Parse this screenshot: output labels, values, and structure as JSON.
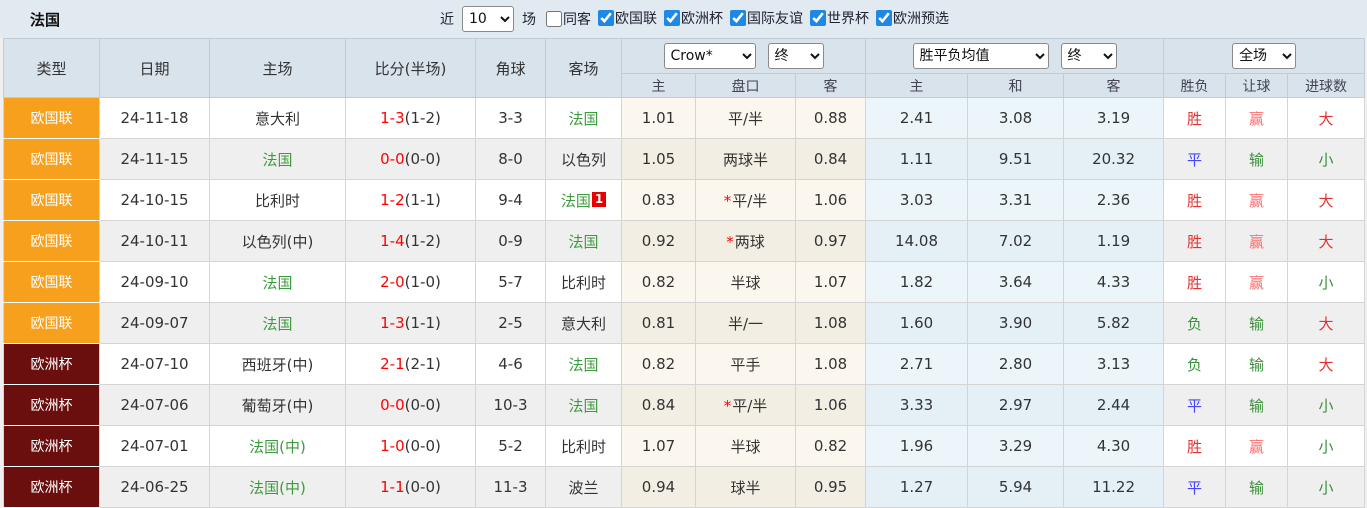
{
  "title": "法国",
  "topbar": {
    "recent_label": "近",
    "recent_value": "10",
    "matches_label": "场",
    "same_venue": {
      "label": "同客",
      "checked": false
    },
    "filters": [
      {
        "label": "欧国联",
        "checked": true
      },
      {
        "label": "欧洲杯",
        "checked": true
      },
      {
        "label": "国际友谊",
        "checked": true
      },
      {
        "label": "世界杯",
        "checked": true
      },
      {
        "label": "欧洲预选",
        "checked": true
      }
    ]
  },
  "table": {
    "static_headers": [
      "类型",
      "日期",
      "主场",
      "比分(半场)",
      "角球",
      "客场"
    ],
    "odds_group": {
      "selects": [
        "Crow*",
        "终"
      ],
      "sub": [
        "主",
        "盘口",
        "客"
      ]
    },
    "avg_group": {
      "selects": [
        "胜平负均值",
        "终"
      ],
      "sub": [
        "主",
        "和",
        "客"
      ]
    },
    "result_group": {
      "select": "全场",
      "sub": [
        "胜负",
        "让球",
        "进球数"
      ]
    },
    "rows": [
      {
        "type": "欧国联",
        "style": "nations",
        "date": "24-11-18",
        "home": {
          "name": "意大利",
          "focus": false
        },
        "score_full": "1-3",
        "score_half": "(1-2)",
        "corners": "3-3",
        "away": {
          "name": "法国",
          "focus": true
        },
        "odds_home": "1.01",
        "handicap": "平/半",
        "handicap_star": false,
        "odds_away": "0.88",
        "avg_home": "2.41",
        "avg_draw": "3.08",
        "avg_away": "3.19",
        "outcome": {
          "text": "胜",
          "color": "red"
        },
        "letgoal": {
          "text": "赢",
          "color": "pink"
        },
        "goals": {
          "text": "大",
          "color": "red"
        }
      },
      {
        "type": "欧国联",
        "style": "nations",
        "date": "24-11-15",
        "home": {
          "name": "法国",
          "focus": true
        },
        "score_full": "0-0",
        "score_half": "(0-0)",
        "corners": "8-0",
        "away": {
          "name": "以色列",
          "focus": false
        },
        "odds_home": "1.05",
        "handicap": "两球半",
        "handicap_star": false,
        "odds_away": "0.84",
        "avg_home": "1.11",
        "avg_draw": "9.51",
        "avg_away": "20.32",
        "outcome": {
          "text": "平",
          "color": "blue"
        },
        "letgoal": {
          "text": "输",
          "color": "green"
        },
        "goals": {
          "text": "小",
          "color": "green"
        }
      },
      {
        "type": "欧国联",
        "style": "nations",
        "date": "24-10-15",
        "home": {
          "name": "比利时",
          "focus": false
        },
        "score_full": "1-2",
        "score_half": "(1-1)",
        "corners": "9-4",
        "away": {
          "name": "法国",
          "focus": true,
          "badge": "1"
        },
        "odds_home": "0.83",
        "handicap": "平/半",
        "handicap_star": true,
        "odds_away": "1.06",
        "avg_home": "3.03",
        "avg_draw": "3.31",
        "avg_away": "2.36",
        "outcome": {
          "text": "胜",
          "color": "red"
        },
        "letgoal": {
          "text": "赢",
          "color": "pink"
        },
        "goals": {
          "text": "大",
          "color": "red"
        }
      },
      {
        "type": "欧国联",
        "style": "nations",
        "date": "24-10-11",
        "home": {
          "name": "以色列(中)",
          "focus": false
        },
        "score_full": "1-4",
        "score_half": "(1-2)",
        "corners": "0-9",
        "away": {
          "name": "法国",
          "focus": true
        },
        "odds_home": "0.92",
        "handicap": "两球",
        "handicap_star": true,
        "odds_away": "0.97",
        "avg_home": "14.08",
        "avg_draw": "7.02",
        "avg_away": "1.19",
        "outcome": {
          "text": "胜",
          "color": "red"
        },
        "letgoal": {
          "text": "赢",
          "color": "pink"
        },
        "goals": {
          "text": "大",
          "color": "red"
        }
      },
      {
        "type": "欧国联",
        "style": "nations",
        "date": "24-09-10",
        "home": {
          "name": "法国",
          "focus": true
        },
        "score_full": "2-0",
        "score_half": "(1-0)",
        "corners": "5-7",
        "away": {
          "name": "比利时",
          "focus": false
        },
        "odds_home": "0.82",
        "handicap": "半球",
        "handicap_star": false,
        "odds_away": "1.07",
        "avg_home": "1.82",
        "avg_draw": "3.64",
        "avg_away": "4.33",
        "outcome": {
          "text": "胜",
          "color": "red"
        },
        "letgoal": {
          "text": "赢",
          "color": "pink"
        },
        "goals": {
          "text": "小",
          "color": "green"
        }
      },
      {
        "type": "欧国联",
        "style": "nations",
        "date": "24-09-07",
        "home": {
          "name": "法国",
          "focus": true
        },
        "score_full": "1-3",
        "score_half": "(1-1)",
        "corners": "2-5",
        "away": {
          "name": "意大利",
          "focus": false
        },
        "odds_home": "0.81",
        "handicap": "半/一",
        "handicap_star": false,
        "odds_away": "1.08",
        "avg_home": "1.60",
        "avg_draw": "3.90",
        "avg_away": "5.82",
        "outcome": {
          "text": "负",
          "color": "green"
        },
        "letgoal": {
          "text": "输",
          "color": "green"
        },
        "goals": {
          "text": "大",
          "color": "red"
        }
      },
      {
        "type": "欧洲杯",
        "style": "euro",
        "date": "24-07-10",
        "home": {
          "name": "西班牙(中)",
          "focus": false
        },
        "score_full": "2-1",
        "score_half": "(2-1)",
        "corners": "4-6",
        "away": {
          "name": "法国",
          "focus": true
        },
        "odds_home": "0.82",
        "handicap": "平手",
        "handicap_star": false,
        "odds_away": "1.08",
        "avg_home": "2.71",
        "avg_draw": "2.80",
        "avg_away": "3.13",
        "outcome": {
          "text": "负",
          "color": "green"
        },
        "letgoal": {
          "text": "输",
          "color": "green"
        },
        "goals": {
          "text": "大",
          "color": "red"
        }
      },
      {
        "type": "欧洲杯",
        "style": "euro",
        "date": "24-07-06",
        "home": {
          "name": "葡萄牙(中)",
          "focus": false
        },
        "score_full": "0-0",
        "score_half": "(0-0)",
        "corners": "10-3",
        "away": {
          "name": "法国",
          "focus": true
        },
        "odds_home": "0.84",
        "handicap": "平/半",
        "handicap_star": true,
        "odds_away": "1.06",
        "avg_home": "3.33",
        "avg_draw": "2.97",
        "avg_away": "2.44",
        "outcome": {
          "text": "平",
          "color": "blue"
        },
        "letgoal": {
          "text": "输",
          "color": "green"
        },
        "goals": {
          "text": "小",
          "color": "green"
        }
      },
      {
        "type": "欧洲杯",
        "style": "euro",
        "date": "24-07-01",
        "home": {
          "name": "法国(中)",
          "focus": true
        },
        "score_full": "1-0",
        "score_half": "(0-0)",
        "corners": "5-2",
        "away": {
          "name": "比利时",
          "focus": false
        },
        "odds_home": "1.07",
        "handicap": "半球",
        "handicap_star": false,
        "odds_away": "0.82",
        "avg_home": "1.96",
        "avg_draw": "3.29",
        "avg_away": "4.30",
        "outcome": {
          "text": "胜",
          "color": "red"
        },
        "letgoal": {
          "text": "赢",
          "color": "pink"
        },
        "goals": {
          "text": "小",
          "color": "green"
        }
      },
      {
        "type": "欧洲杯",
        "style": "euro",
        "date": "24-06-25",
        "home": {
          "name": "法国(中)",
          "focus": true
        },
        "score_full": "1-1",
        "score_half": "(0-0)",
        "corners": "11-3",
        "away": {
          "name": "波兰",
          "focus": false
        },
        "odds_home": "0.94",
        "handicap": "球半",
        "handicap_star": false,
        "odds_away": "0.95",
        "avg_home": "1.27",
        "avg_draw": "5.94",
        "avg_away": "11.22",
        "outcome": {
          "text": "平",
          "color": "blue"
        },
        "letgoal": {
          "text": "输",
          "color": "green"
        },
        "goals": {
          "text": "小",
          "color": "green"
        }
      }
    ]
  },
  "colors": {
    "accent_checkbox": "#1e88e5",
    "badge_nations": "#f7a01d",
    "badge_euro": "#6b0e0e",
    "focus_team_green": "#3e9a3e",
    "score_red": "#ff0000",
    "result_red": "#e23333",
    "handicap_win_pink": "#ff6e6e",
    "draw_blue": "#4545ff",
    "result_green": "#3c8f3c",
    "number_badge_red": "#e60000"
  }
}
